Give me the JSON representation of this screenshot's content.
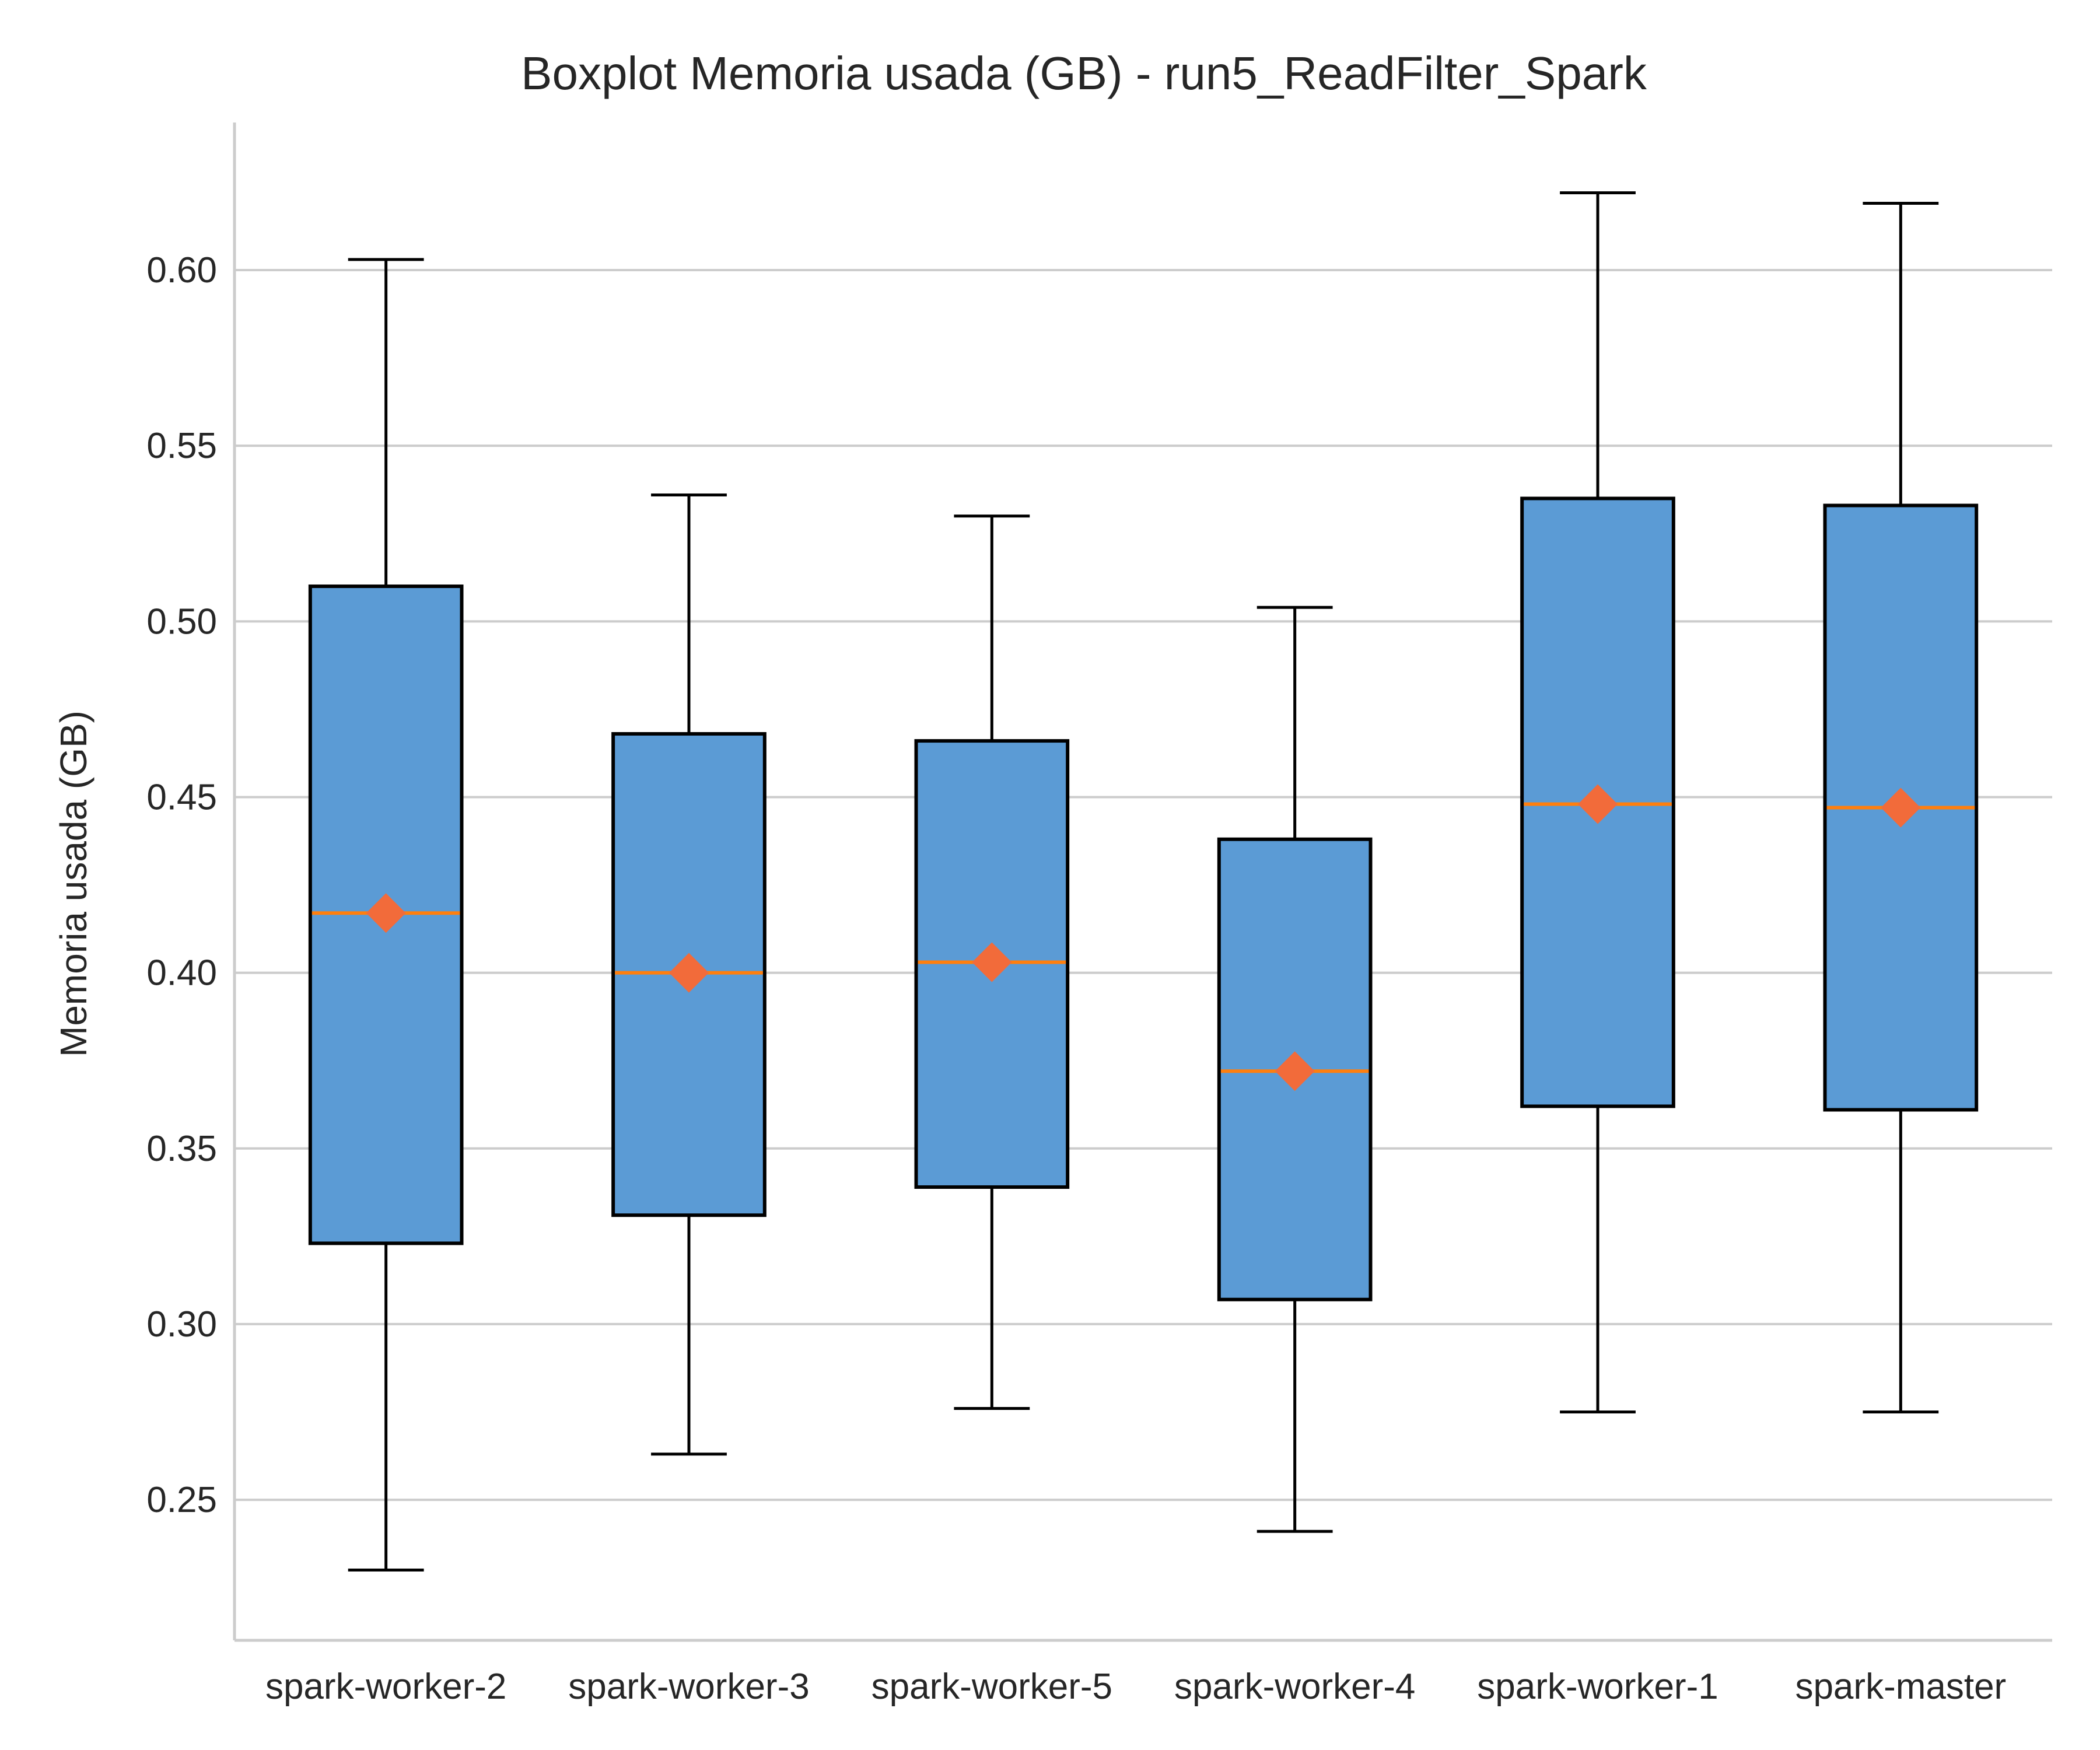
{
  "chart_data": {
    "type": "boxplot",
    "title": "Boxplot Memoria usada (GB) - run5_ReadFilter_Spark",
    "xlabel": "",
    "ylabel": "Memoria usada (GB)",
    "ylim": [
      0.21,
      0.642
    ],
    "yticks": [
      "0.25",
      "0.30",
      "0.35",
      "0.40",
      "0.45",
      "0.50",
      "0.55",
      "0.60"
    ],
    "grid": "horizontal",
    "colors": {
      "box_fill": "#5b9bd5",
      "box_edge": "#000000",
      "median": "#ff7f0e",
      "mean_marker": "#f26b3a",
      "grid": "#cccccc",
      "axis": "#cccccc"
    },
    "categories": [
      "spark-worker-2",
      "spark-worker-3",
      "spark-worker-5",
      "spark-worker-4",
      "spark-worker-1",
      "spark-master"
    ],
    "boxes": [
      {
        "whislo": 0.23,
        "q1": 0.323,
        "med": 0.417,
        "q3": 0.51,
        "whishi": 0.603,
        "mean": 0.417
      },
      {
        "whislo": 0.263,
        "q1": 0.331,
        "med": 0.4,
        "q3": 0.468,
        "whishi": 0.536,
        "mean": 0.4
      },
      {
        "whislo": 0.276,
        "q1": 0.339,
        "med": 0.403,
        "q3": 0.466,
        "whishi": 0.53,
        "mean": 0.403
      },
      {
        "whislo": 0.241,
        "q1": 0.307,
        "med": 0.372,
        "q3": 0.438,
        "whishi": 0.504,
        "mean": 0.372
      },
      {
        "whislo": 0.275,
        "q1": 0.362,
        "med": 0.448,
        "q3": 0.535,
        "whishi": 0.622,
        "mean": 0.448
      },
      {
        "whislo": 0.275,
        "q1": 0.361,
        "med": 0.447,
        "q3": 0.533,
        "whishi": 0.619,
        "mean": 0.447
      }
    ]
  }
}
